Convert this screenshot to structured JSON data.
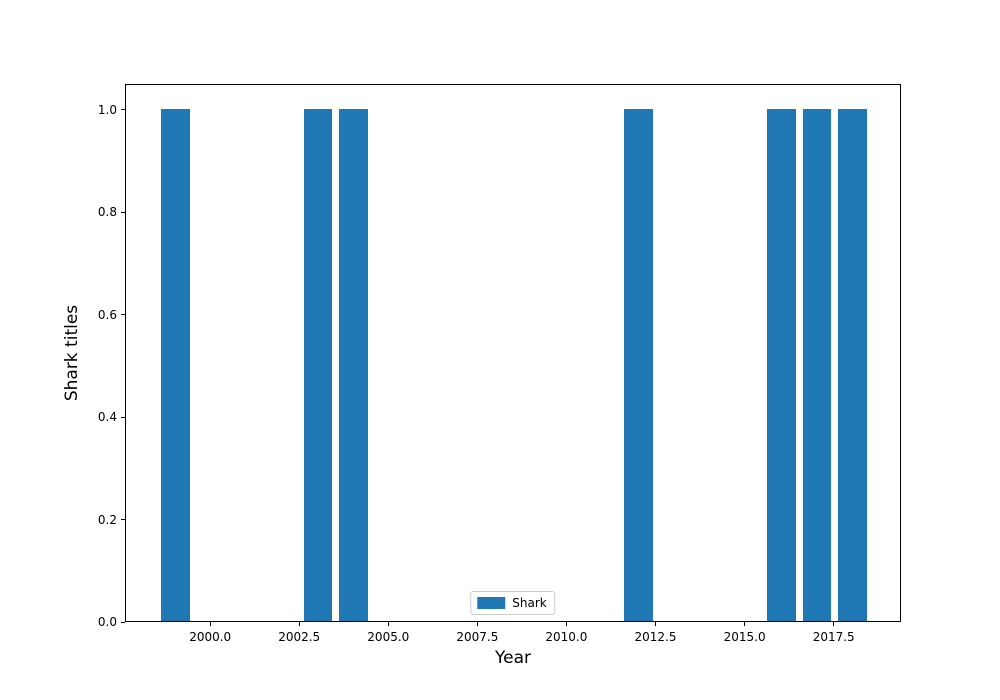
{
  "chart_data": {
    "type": "bar",
    "title": "",
    "xlabel": "Year",
    "ylabel": "Shark titles",
    "x": [
      1999,
      2003,
      2004,
      2012,
      2016,
      2017,
      2018
    ],
    "values": [
      1.0,
      1.0,
      1.0,
      1.0,
      1.0,
      1.0,
      1.0
    ],
    "bar_width_years": 0.8,
    "bar_color": "#1f77b4",
    "xlim": [
      1997.61,
      2019.39
    ],
    "ylim": [
      0,
      1.05
    ],
    "xticks": [
      2000.0,
      2002.5,
      2005.0,
      2007.5,
      2010.0,
      2012.5,
      2015.0,
      2017.5
    ],
    "xtick_labels": [
      "2000.0",
      "2002.5",
      "2005.0",
      "2007.5",
      "2010.0",
      "2012.5",
      "2015.0",
      "2017.5"
    ],
    "yticks": [
      0.0,
      0.2,
      0.4,
      0.6,
      0.8,
      1.0
    ],
    "ytick_labels": [
      "0.0",
      "0.2",
      "0.4",
      "0.6",
      "0.8",
      "1.0"
    ],
    "legend": {
      "position": "lower center",
      "entries": [
        {
          "label": "Shark",
          "color": "#1f77b4"
        }
      ]
    },
    "grid": false,
    "spine_color": "#000000",
    "background_color": "#ffffff"
  }
}
